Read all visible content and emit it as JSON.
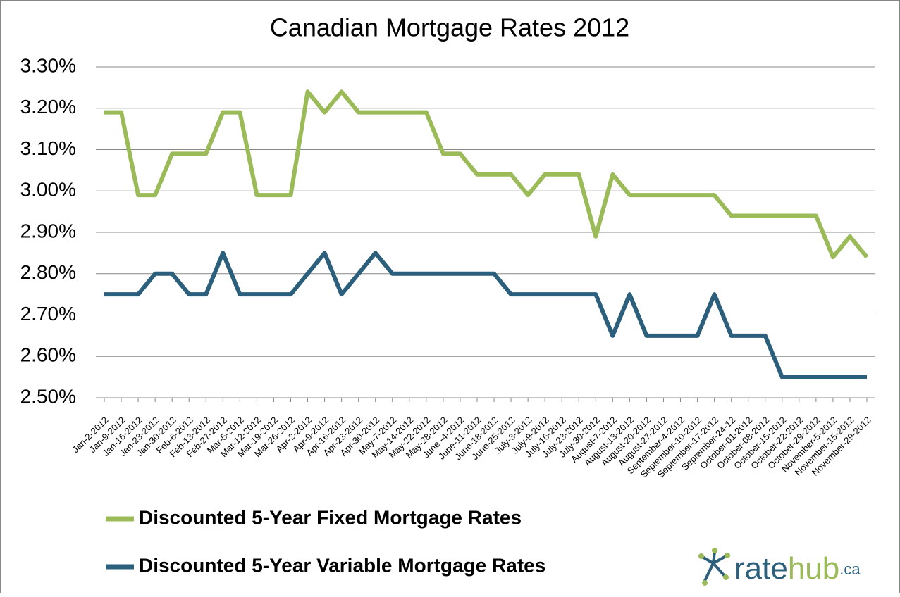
{
  "chart_data": {
    "type": "line",
    "title": "Canadian Mortgage Rates 2012",
    "categories": [
      "Jan-2-2012",
      "Jan-9-2012",
      "Jan-16-2012",
      "Jan-23-2012",
      "Jan-30-2012",
      "Feb-6-2012",
      "Feb-13-2012",
      "Feb-27-2012",
      "Mar-5-2012",
      "Mar-12-2012",
      "Mar-19-2012",
      "Mar-26-2012",
      "Apr-2-2012",
      "Apr-9-2012",
      "Apr-16-2012",
      "Apr-23-2012",
      "Apr-30-2012",
      "May-7-2012",
      "May-14-2012",
      "May-22-2012",
      "May-28-2012",
      "June -4-2012",
      "June-11-2012",
      "June-18-2012",
      "June-25-2012",
      "July-3-2012",
      "July-9-2012",
      "July-16-2012",
      "July-23-2012",
      "July-30-2012",
      "August-7-2012",
      "August-13-2012",
      "August-20-2012",
      "August-27-2012",
      "September-4-2012",
      "September-10-2012",
      "September-17-2012",
      "September-24-12",
      "October-01-2012",
      "October-08-2012",
      "October-15-2012",
      "October-22-2012",
      "October-29-2012",
      "November-5-2012",
      "November-15-2012",
      "November-29-2012"
    ],
    "series": [
      {
        "name": "Discounted 5-Year Fixed Mortgage Rates",
        "color": "#9bbb59",
        "values": [
          3.19,
          3.19,
          2.99,
          2.99,
          3.09,
          3.09,
          3.09,
          3.19,
          3.19,
          2.99,
          2.99,
          2.99,
          3.24,
          3.19,
          3.24,
          3.19,
          3.19,
          3.19,
          3.19,
          3.19,
          3.09,
          3.09,
          3.04,
          3.04,
          3.04,
          2.99,
          3.04,
          3.04,
          3.04,
          2.89,
          3.04,
          2.99,
          2.99,
          2.99,
          2.99,
          2.99,
          2.99,
          2.94,
          2.94,
          2.94,
          2.94,
          2.94,
          2.94,
          2.84,
          2.89,
          2.84
        ]
      },
      {
        "name": "Discounted 5-Year Variable Mortgage Rates",
        "color": "#2c5f7c",
        "values": [
          2.75,
          2.75,
          2.75,
          2.8,
          2.8,
          2.75,
          2.75,
          2.85,
          2.75,
          2.75,
          2.75,
          2.75,
          2.8,
          2.85,
          2.75,
          2.8,
          2.85,
          2.8,
          2.8,
          2.8,
          2.8,
          2.8,
          2.8,
          2.8,
          2.75,
          2.75,
          2.75,
          2.75,
          2.75,
          2.75,
          2.65,
          2.75,
          2.65,
          2.65,
          2.65,
          2.65,
          2.75,
          2.65,
          2.65,
          2.65,
          2.55,
          2.55,
          2.55,
          2.55,
          2.55,
          2.55
        ]
      }
    ],
    "ylim": [
      2.5,
      3.3
    ],
    "yticks": [
      {
        "value": 2.5,
        "label": "2.50%"
      },
      {
        "value": 2.6,
        "label": "2.60%"
      },
      {
        "value": 2.7,
        "label": "2.70%"
      },
      {
        "value": 2.8,
        "label": "2.80%"
      },
      {
        "value": 2.9,
        "label": "2.90%"
      },
      {
        "value": 3.0,
        "label": "3.00%"
      },
      {
        "value": 3.1,
        "label": "3.10%"
      },
      {
        "value": 3.2,
        "label": "3.20%"
      },
      {
        "value": 3.3,
        "label": "3.30%"
      }
    ],
    "grid": true,
    "legend": "bottom"
  },
  "brand": {
    "name": "rate",
    "accent": "hub",
    "suffix": ".ca"
  }
}
